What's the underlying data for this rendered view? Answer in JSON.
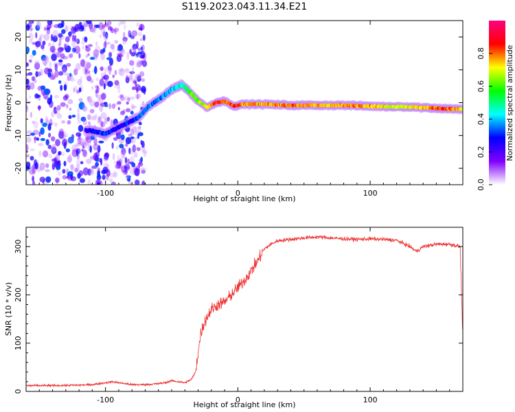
{
  "title": "S119.2023.043.11.34.E21",
  "chart_data": [
    {
      "type": "heatmap",
      "xlabel": "Height of straight line (km)",
      "ylabel": "Frequency (Hz)",
      "xlim": [
        -160,
        170
      ],
      "ylim": [
        -25,
        25
      ],
      "x_ticks": [
        -100,
        0,
        100
      ],
      "x_tick_labels": [
        "-100",
        "0",
        "100"
      ],
      "y_ticks": [
        -20,
        -10,
        0,
        10,
        20
      ],
      "y_tick_labels": [
        "-20",
        "-10",
        "0",
        "10",
        "20"
      ],
      "grid": false,
      "colorbar": {
        "label": "Normalized spectral amplitude",
        "range": [
          0,
          1
        ],
        "ticks": [
          0,
          0.2,
          0.4,
          0.6,
          0.8
        ],
        "tick_labels": [
          "0.0",
          "0.2",
          "0.4",
          "0.6",
          "0.8"
        ],
        "colors": [
          "#ffffff",
          "#8000ff",
          "#0000ff",
          "#00ffff",
          "#00ff00",
          "#ffff00",
          "#ff0000",
          "#ff0080"
        ]
      },
      "ridge": [
        {
          "x": -112,
          "f": -8.5,
          "a": 0.25
        },
        {
          "x": -100,
          "f": -9.5,
          "a": 0.3
        },
        {
          "x": -90,
          "f": -7.5,
          "a": 0.25
        },
        {
          "x": -75,
          "f": -4.5,
          "a": 0.3
        },
        {
          "x": -67,
          "f": -1.0,
          "a": 0.35
        },
        {
          "x": -58,
          "f": 1.5,
          "a": 0.35
        },
        {
          "x": -50,
          "f": 4.0,
          "a": 0.4
        },
        {
          "x": -42,
          "f": 5.5,
          "a": 0.45
        },
        {
          "x": -36,
          "f": 3.0,
          "a": 0.6
        },
        {
          "x": -30,
          "f": 0.5,
          "a": 0.65
        },
        {
          "x": -23,
          "f": -1.5,
          "a": 0.7
        },
        {
          "x": -17,
          "f": 0.0,
          "a": 0.85
        },
        {
          "x": -10,
          "f": 0.5,
          "a": 0.8
        },
        {
          "x": -3,
          "f": -1.0,
          "a": 0.85
        },
        {
          "x": 5,
          "f": -0.5,
          "a": 0.8
        },
        {
          "x": 20,
          "f": -0.5,
          "a": 0.75
        },
        {
          "x": 40,
          "f": -0.8,
          "a": 0.8
        },
        {
          "x": 60,
          "f": -0.8,
          "a": 0.75
        },
        {
          "x": 80,
          "f": -0.8,
          "a": 0.75
        },
        {
          "x": 95,
          "f": -1.0,
          "a": 0.8
        },
        {
          "x": 110,
          "f": -1.2,
          "a": 0.7
        },
        {
          "x": 125,
          "f": -1.2,
          "a": 0.7
        },
        {
          "x": 140,
          "f": -1.5,
          "a": 0.75
        },
        {
          "x": 155,
          "f": -1.8,
          "a": 0.85
        },
        {
          "x": 170,
          "f": -2.0,
          "a": 0.7
        }
      ]
    },
    {
      "type": "line",
      "xlabel": "Height of straight line (km)",
      "ylabel": "SNR (10 * v/v)",
      "xlim": [
        -160,
        170
      ],
      "ylim": [
        0,
        340
      ],
      "x_ticks": [
        -100,
        0,
        100
      ],
      "x_tick_labels": [
        "-100",
        "0",
        "100"
      ],
      "y_ticks": [
        0,
        100,
        200,
        300
      ],
      "y_tick_labels": [
        "0",
        "100",
        "200",
        "300"
      ],
      "grid": false,
      "series": [
        {
          "color": "#ee3030",
          "x": [
            -160,
            -140,
            -120,
            -110,
            -100,
            -95,
            -90,
            -80,
            -70,
            -60,
            -55,
            -50,
            -45,
            -40,
            -35,
            -32,
            -30,
            -28,
            -25,
            -20,
            -15,
            -10,
            -5,
            0,
            5,
            10,
            15,
            20,
            25,
            30,
            40,
            50,
            60,
            70,
            80,
            90,
            100,
            110,
            120,
            130,
            135,
            140,
            150,
            160,
            168,
            170
          ],
          "y": [
            12,
            12,
            13,
            14,
            18,
            20,
            18,
            14,
            14,
            16,
            18,
            22,
            20,
            18,
            25,
            40,
            80,
            120,
            145,
            170,
            180,
            185,
            200,
            215,
            230,
            250,
            270,
            295,
            305,
            312,
            315,
            318,
            320,
            318,
            316,
            315,
            316,
            315,
            313,
            300,
            290,
            300,
            305,
            305,
            300,
            110
          ]
        }
      ]
    }
  ]
}
